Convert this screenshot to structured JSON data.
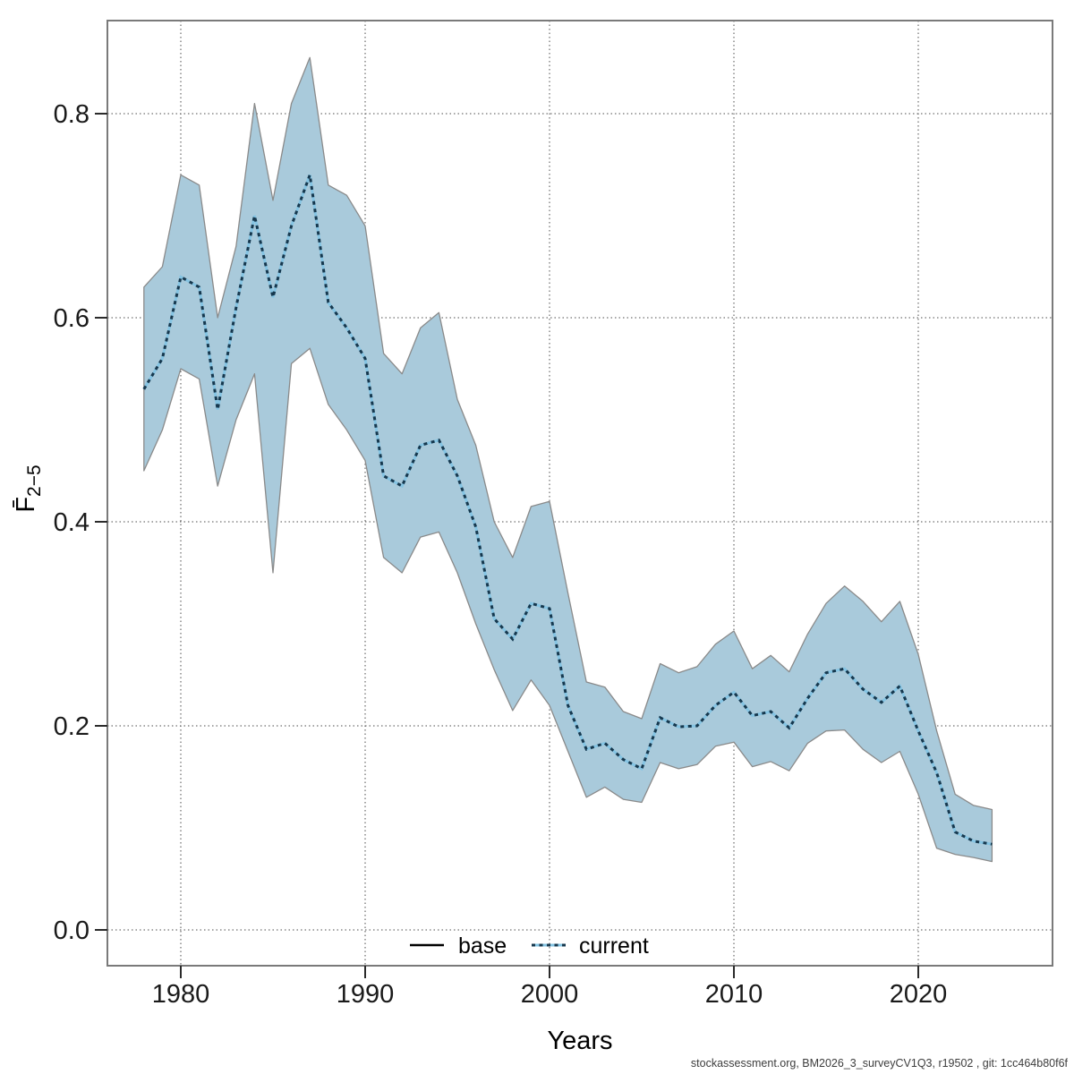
{
  "footer": "stockassessment.org, BM2026_3_surveyCV1Q3, r19502 , git: 1cc464b80f6f",
  "colors": {
    "band_fill": "#a9cadb",
    "band_edge": "#8a8a8a",
    "current_dark": "#16384e",
    "current_light": "#85c4e3",
    "base_line": "#000000",
    "grid": "#4d4d4d",
    "box": "#7a7a7a",
    "tick": "#2b2b2b"
  },
  "legend": {
    "base_label": "base",
    "current_label": "current"
  },
  "chart_data": {
    "type": "line",
    "title": "",
    "xlabel": "Years",
    "ylabel_main": "F̄",
    "ylabel_sub": "2−5",
    "x_ticks": [
      1980,
      1990,
      2000,
      2010,
      2020
    ],
    "x_tick_labels": [
      "1980",
      "1990",
      "2000",
      "2010",
      "2020"
    ],
    "y_ticks": [
      0.0,
      0.2,
      0.4,
      0.6,
      0.8
    ],
    "y_tick_labels": [
      "0.0",
      "0.2",
      "0.4",
      "0.6",
      "0.8"
    ],
    "xlim": [
      1976.0,
      2027.3
    ],
    "ylim": [
      -0.035,
      0.891
    ],
    "grid": true,
    "legend_position": "bottom-center-inside",
    "x": [
      1978,
      1979,
      1980,
      1981,
      1982,
      1983,
      1984,
      1985,
      1986,
      1987,
      1988,
      1989,
      1990,
      1991,
      1992,
      1993,
      1994,
      1995,
      1996,
      1997,
      1998,
      1999,
      2000,
      2001,
      2002,
      2003,
      2004,
      2005,
      2006,
      2007,
      2008,
      2009,
      2010,
      2011,
      2012,
      2013,
      2014,
      2015,
      2016,
      2017,
      2018,
      2019,
      2020,
      2021,
      2022,
      2023,
      2024
    ],
    "series": [
      {
        "name": "current",
        "style": "dotted",
        "values": [
          0.53,
          0.56,
          0.64,
          0.63,
          0.51,
          0.61,
          0.7,
          0.62,
          0.69,
          0.74,
          0.615,
          0.59,
          0.56,
          0.445,
          0.435,
          0.475,
          0.48,
          0.445,
          0.395,
          0.305,
          0.285,
          0.32,
          0.315,
          0.22,
          0.177,
          0.183,
          0.167,
          0.158,
          0.208,
          0.199,
          0.2,
          0.22,
          0.233,
          0.21,
          0.214,
          0.198,
          0.227,
          0.252,
          0.256,
          0.236,
          0.223,
          0.239,
          0.195,
          0.154,
          0.096,
          0.087,
          0.084
        ]
      }
    ],
    "band": {
      "name": "confidence-interval",
      "lower": [
        0.45,
        0.49,
        0.55,
        0.54,
        0.435,
        0.5,
        0.545,
        0.35,
        0.555,
        0.57,
        0.515,
        0.49,
        0.46,
        0.365,
        0.35,
        0.385,
        0.39,
        0.35,
        0.3,
        0.255,
        0.215,
        0.245,
        0.22,
        0.175,
        0.13,
        0.14,
        0.128,
        0.125,
        0.164,
        0.158,
        0.162,
        0.18,
        0.184,
        0.16,
        0.165,
        0.156,
        0.183,
        0.195,
        0.196,
        0.177,
        0.164,
        0.175,
        0.133,
        0.08,
        0.074,
        0.071,
        0.067
      ],
      "upper": [
        0.63,
        0.65,
        0.74,
        0.73,
        0.6,
        0.67,
        0.81,
        0.715,
        0.81,
        0.855,
        0.73,
        0.72,
        0.69,
        0.565,
        0.545,
        0.59,
        0.605,
        0.52,
        0.475,
        0.4,
        0.365,
        0.415,
        0.42,
        0.33,
        0.243,
        0.238,
        0.214,
        0.207,
        0.261,
        0.252,
        0.258,
        0.28,
        0.293,
        0.256,
        0.269,
        0.253,
        0.29,
        0.32,
        0.337,
        0.322,
        0.302,
        0.322,
        0.27,
        0.195,
        0.133,
        0.122,
        0.118
      ]
    }
  }
}
